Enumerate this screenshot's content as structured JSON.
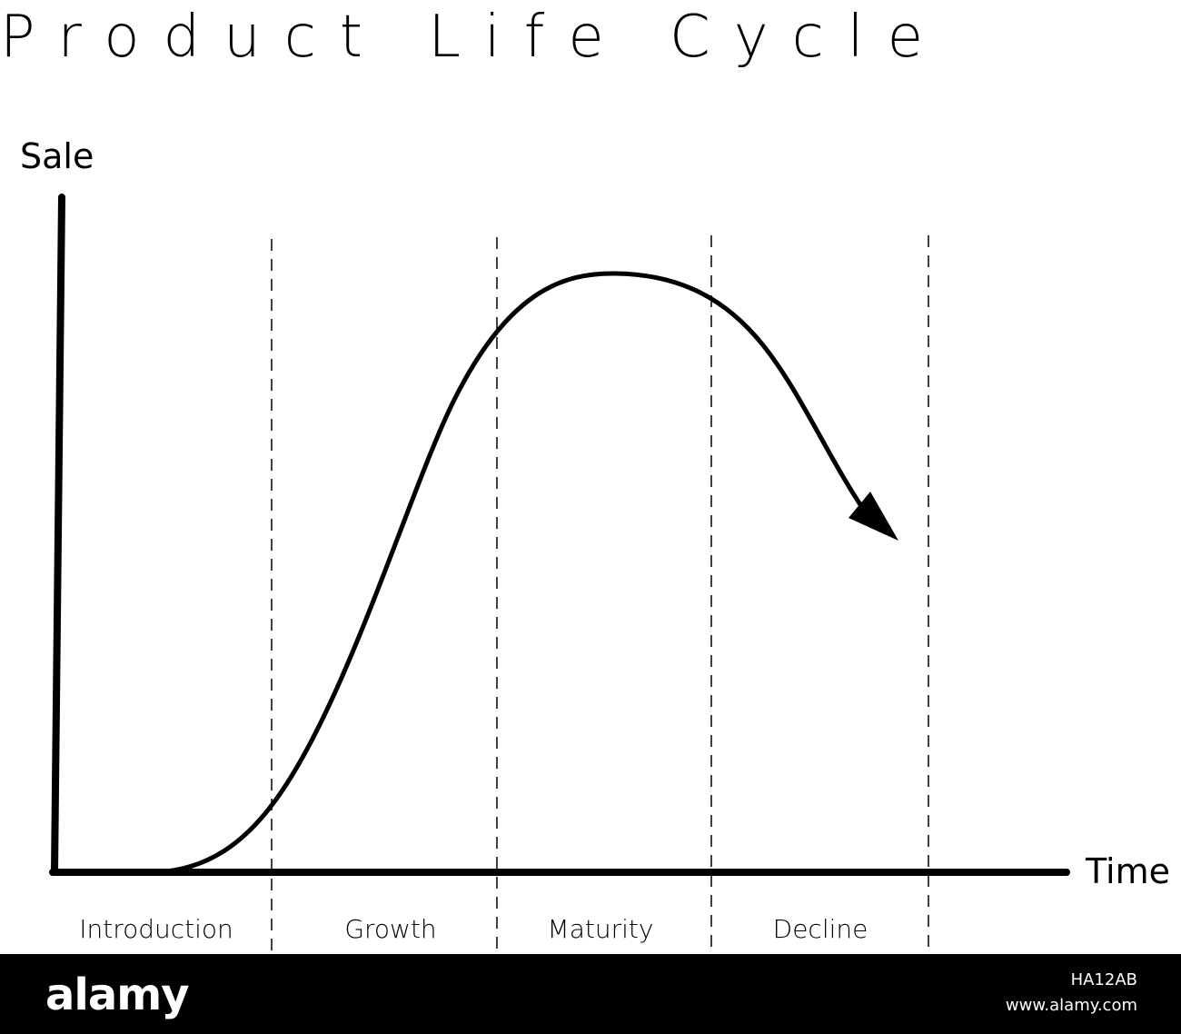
{
  "title": "Product Life Cycle",
  "y_axis_label": "Sale",
  "x_axis_label": "Time",
  "stages": [
    "Introduction",
    "Growth",
    "Maturity",
    "Decline"
  ],
  "colors": {
    "background": "#ffffff",
    "ink": "#000000",
    "footer": "#000000",
    "footer_text": "#ffffff"
  },
  "footer": {
    "logo_text": "alamy",
    "image_id": "HA12AB",
    "site": "www.alamy.com"
  }
}
